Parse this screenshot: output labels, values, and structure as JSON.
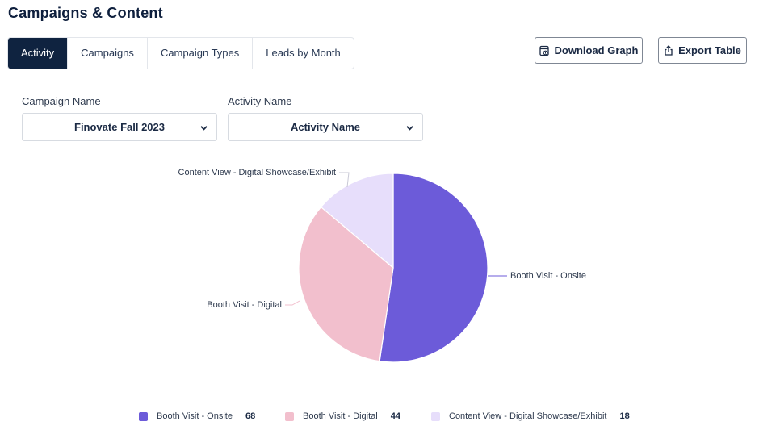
{
  "page": {
    "title": "Campaigns & Content"
  },
  "tabs": [
    {
      "label": "Activity",
      "active": true
    },
    {
      "label": "Campaigns",
      "active": false
    },
    {
      "label": "Campaign Types",
      "active": false
    },
    {
      "label": "Leads by Month",
      "active": false
    }
  ],
  "toolbar": {
    "download_label": "Download Graph",
    "download_icon": "download-graph-icon",
    "export_label": "Export Table",
    "export_icon": "export-icon"
  },
  "filters": {
    "campaign": {
      "label": "Campaign Name",
      "value": "Finovate Fall 2023"
    },
    "activity": {
      "label": "Activity Name",
      "value": "Activity Name"
    }
  },
  "chart_data": {
    "type": "pie",
    "categories": [
      "Booth Visit - Onsite",
      "Booth Visit - Digital",
      "Content View - Digital Showcase/Exhibit"
    ],
    "values": [
      68,
      44,
      18
    ],
    "colors": [
      "#6c5bd9",
      "#f2bfcd",
      "#e7defb"
    ],
    "legend_position": "bottom"
  },
  "legend": [
    {
      "label": "Booth Visit - Onsite",
      "value": "68",
      "color": "#6c5bd9"
    },
    {
      "label": "Booth Visit - Digital",
      "value": "44",
      "color": "#f2bfcd"
    },
    {
      "label": "Content View - Digital Showcase/Exhibit",
      "value": "18",
      "color": "#e7defb"
    }
  ],
  "colors": {
    "primary_dark": "#0f2340",
    "text": "#1b2a44",
    "border": "#d7dbe1"
  }
}
